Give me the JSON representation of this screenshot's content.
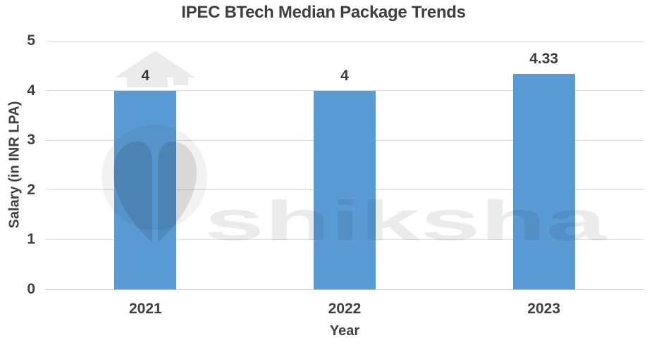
{
  "title": "IPEC BTech Median Package Trends",
  "watermark": {
    "text": "shiksha",
    "logo": "shiksha-graduation-cap-pen-nib-icon"
  },
  "chart_data": {
    "type": "bar",
    "title": "IPEC BTech Median Package Trends",
    "categories": [
      "2021",
      "2022",
      "2023"
    ],
    "values": [
      4,
      4,
      4.33
    ],
    "data_labels": [
      "4",
      "4",
      "4.33"
    ],
    "xlabel": "Year",
    "ylabel": "Salary (in INR LPA)",
    "ylim": [
      0,
      5
    ],
    "yticks": [
      0,
      1,
      2,
      3,
      4,
      5
    ],
    "grid": "horizontal",
    "legend": "none",
    "bar_color": "#5b9bd5",
    "text_color": "#404040",
    "gridline_color": "#d9d9d9",
    "axisline_color": "#c6c6c6",
    "background_color": "#ffffff"
  }
}
